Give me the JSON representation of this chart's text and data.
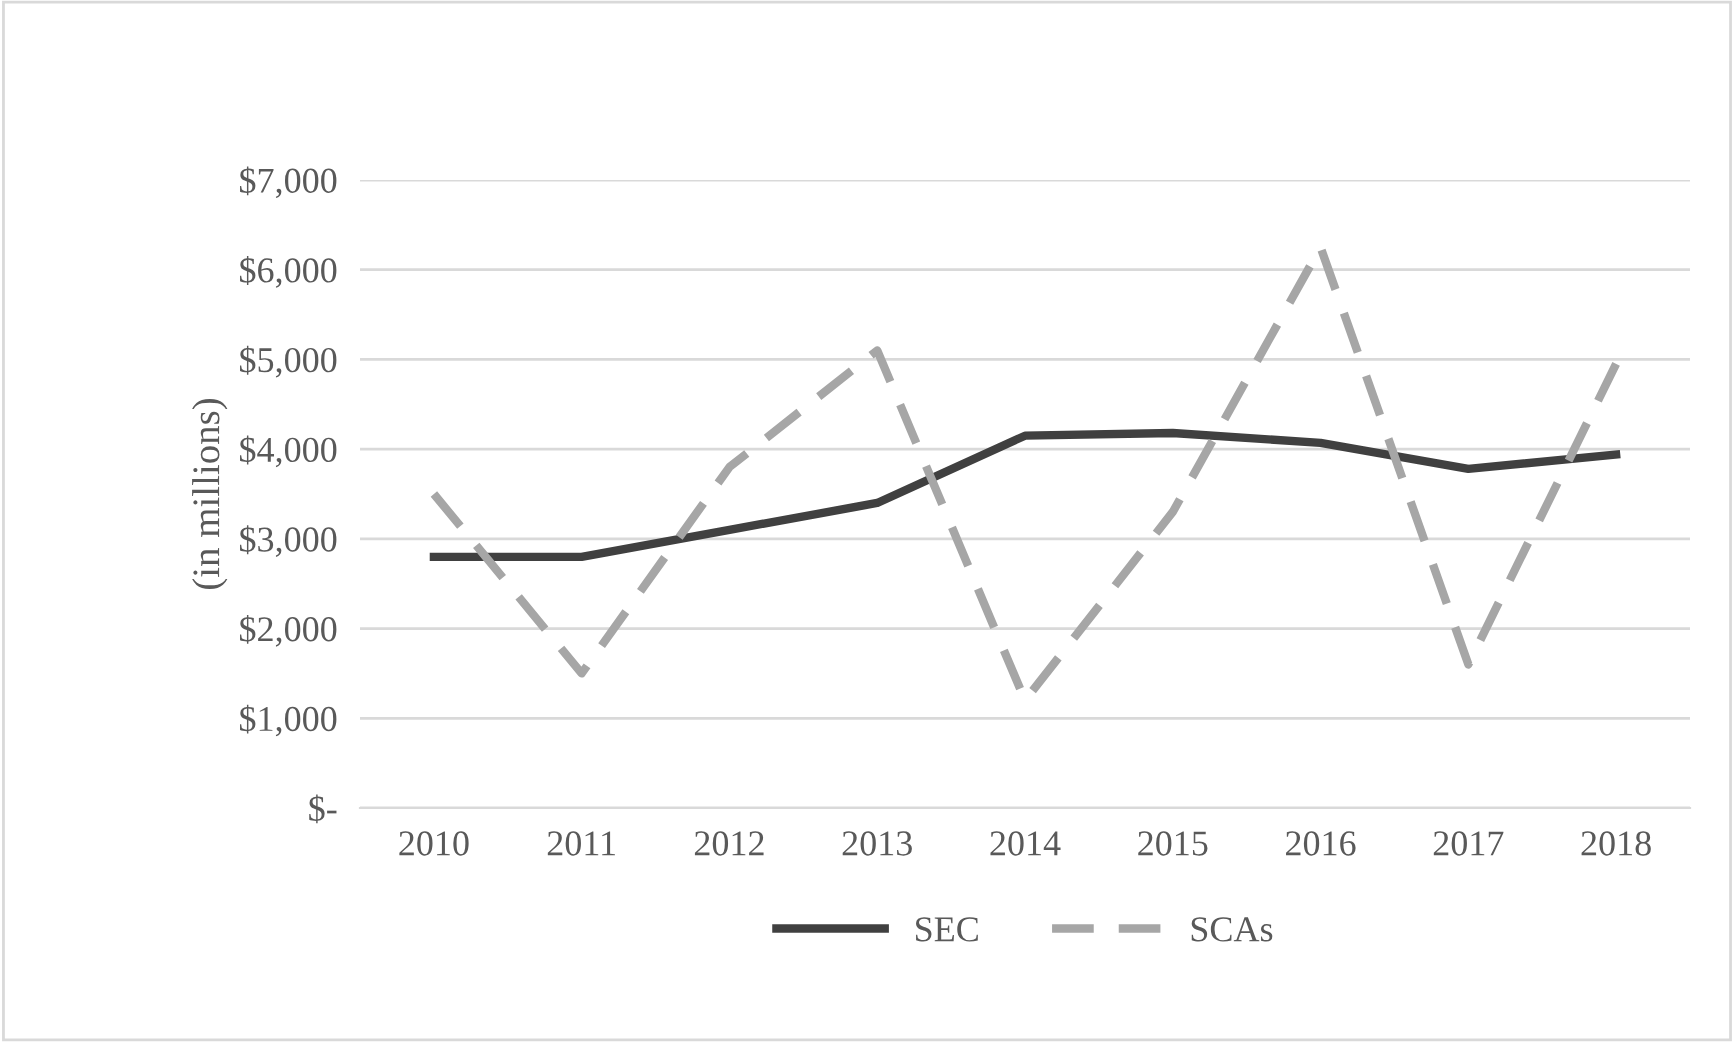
{
  "chart_data": {
    "type": "line",
    "ylabel": "(in millions)",
    "categories": [
      "2010",
      "2011",
      "2012",
      "2013",
      "2014",
      "2015",
      "2016",
      "2017",
      "2018"
    ],
    "series": [
      {
        "name": "SEC",
        "color": "#404040",
        "line_style": "solid",
        "values": [
          2800,
          2800,
          3100,
          3400,
          4150,
          4180,
          4070,
          3780,
          3940
        ]
      },
      {
        "name": "SCAs",
        "color": "#a6a6a6",
        "line_style": "dashed",
        "values": [
          3500,
          1500,
          3800,
          5100,
          1200,
          3300,
          6250,
          1600,
          4950
        ]
      }
    ],
    "ylim": [
      0,
      7000
    ],
    "yticks": [
      {
        "value": 0,
        "label": "$-"
      },
      {
        "value": 1000,
        "label": "$1,000"
      },
      {
        "value": 2000,
        "label": "$2,000"
      },
      {
        "value": 3000,
        "label": "$3,000"
      },
      {
        "value": 4000,
        "label": "$4,000"
      },
      {
        "value": 5000,
        "label": "$5,000"
      },
      {
        "value": 6000,
        "label": "$6,000"
      },
      {
        "value": 7000,
        "label": "$7,000"
      }
    ],
    "grid": "y",
    "legend": "bottom",
    "marker": "none"
  }
}
